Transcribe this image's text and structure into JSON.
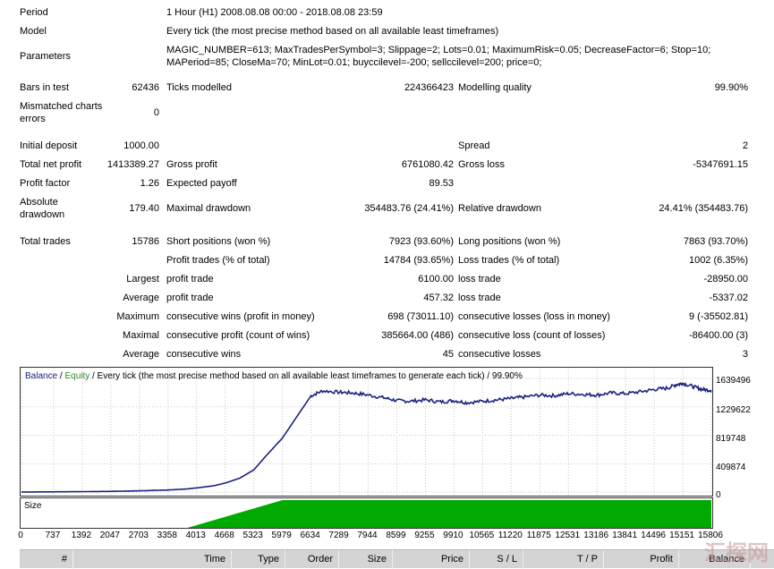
{
  "report": {
    "period_label": "Period",
    "period_value": "1 Hour (H1) 2008.08.08 00:00 - 2018.08.08 23:59",
    "model_label": "Model",
    "model_value": "Every tick (the most precise method based on all available least timeframes)",
    "parameters_label": "Parameters",
    "parameters_line1": "MAGIC_NUMBER=613; MaxTradesPerSymbol=3; Slippage=2; Lots=0.01; MaximumRisk=0.05; DecreaseFactor=6; Stop=10;",
    "parameters_line2": "MAPeriod=85; CloseMa=70; MinLot=0.01; buyccilevel=-200; sellccilevel=200; price=0;",
    "bars_label": "Bars in test",
    "bars_value": "62436",
    "ticks_label": "Ticks modelled",
    "ticks_value": "224366423",
    "quality_label": "Modelling quality",
    "quality_value": "99.90%",
    "mismatch_label_1": "Mismatched charts",
    "mismatch_label_2": "errors",
    "mismatch_value": "0",
    "deposit_label": "Initial deposit",
    "deposit_value": "1000.00",
    "spread_label": "Spread",
    "spread_value": "2",
    "net_profit_label": "Total net profit",
    "net_profit_value": "1413389.27",
    "gross_profit_label": "Gross profit",
    "gross_profit_value": "6761080.42",
    "gross_loss_label": "Gross loss",
    "gross_loss_value": "-5347691.15",
    "profit_factor_label": "Profit factor",
    "profit_factor_value": "1.26",
    "expected_payoff_label": "Expected payoff",
    "expected_payoff_value": "89.53",
    "abs_dd_label_1": "Absolute",
    "abs_dd_label_2": "drawdown",
    "abs_dd_value": "179.40",
    "max_dd_label": "Maximal drawdown",
    "max_dd_value": "354483.76 (24.41%)",
    "rel_dd_label": "Relative drawdown",
    "rel_dd_value": "24.41% (354483.76)",
    "total_trades_label": "Total trades",
    "total_trades_value": "15786",
    "short_label": "Short positions (won %)",
    "short_value": "7923 (93.60%)",
    "long_label": "Long positions (won %)",
    "long_value": "7863 (93.70%)",
    "profit_trades_label": "Profit trades (% of total)",
    "profit_trades_value": "14784 (93.65%)",
    "loss_trades_label": "Loss trades (% of total)",
    "loss_trades_value": "1002 (6.35%)",
    "largest_label": "Largest",
    "largest_profit_label": "profit trade",
    "largest_profit_value": "6100.00",
    "largest_loss_label": "loss trade",
    "largest_loss_value": "-28950.00",
    "average_label": "Average",
    "average_profit_label": "profit trade",
    "average_profit_value": "457.32",
    "average_loss_label": "loss trade",
    "average_loss_value": "-5337.02",
    "maximum_label": "Maximum",
    "max_cons_wins_label": "consecutive wins (profit in money)",
    "max_cons_wins_value": "698 (73011.10)",
    "max_cons_losses_label": "consecutive losses (loss in money)",
    "max_cons_losses_value": "9 (-35502.81)",
    "maximal_label": "Maximal",
    "maximal_cons_profit_label": "consecutive profit (count of wins)",
    "maximal_cons_profit_value": "385664.00 (486)",
    "maximal_cons_loss_label": "consecutive loss (count of losses)",
    "maximal_cons_loss_value": "-86400.00 (3)",
    "avg_label": "Average",
    "avg_cons_wins_label": "consecutive wins",
    "avg_cons_wins_value": "45",
    "avg_cons_losses_label": "consecutive losses",
    "avg_cons_losses_value": "3"
  },
  "chart_title": {
    "balance": "Balance",
    "sep": " / ",
    "equity": "Equity",
    "rest": " / Every tick (the most precise method based on all available least timeframes to generate each tick)  /  99.90%"
  },
  "size_label": "Size",
  "columns": [
    "#",
    "Time",
    "Type",
    "Order",
    "Size",
    "Price",
    "S / L",
    "T / P",
    "Profit",
    "Balance"
  ],
  "watermark": "汇探网",
  "colors": {
    "balance": "#1a237e",
    "equity": "#2e8b2e",
    "size_bars": "#00aa00",
    "grid": "#c8c8c8"
  },
  "chart_data": {
    "type": "line",
    "x_ticks": [
      "0",
      "737",
      "1392",
      "2047",
      "2703",
      "3358",
      "4013",
      "4668",
      "5323",
      "5979",
      "6634",
      "7289",
      "7944",
      "8599",
      "9255",
      "9910",
      "10565",
      "11220",
      "11875",
      "12531",
      "13186",
      "13841",
      "14496",
      "15151",
      "15806"
    ],
    "y_ticks": [
      "1639496",
      "1229622",
      "819748",
      "409874",
      "0"
    ],
    "ylim": [
      0,
      1639496
    ],
    "xlim": [
      0,
      15806
    ],
    "series": [
      {
        "name": "Balance",
        "x": [
          0,
          737,
          1392,
          2047,
          2703,
          3358,
          3800,
          4013,
          4400,
          4668,
          5000,
          5323,
          5600,
          5979,
          6300,
          6634,
          6900,
          7289,
          7600,
          7944,
          8300,
          8599,
          8900,
          9255,
          9600,
          9910,
          10200,
          10565,
          10900,
          11220,
          11500,
          11875,
          12200,
          12531,
          12900,
          13186,
          13500,
          13841,
          14200,
          14496,
          14800,
          15000,
          15151,
          15400,
          15600,
          15806
        ],
        "y": [
          1000,
          3000,
          6000,
          10000,
          18000,
          30000,
          45000,
          60000,
          90000,
          130000,
          200000,
          320000,
          520000,
          780000,
          1080000,
          1390000,
          1460000,
          1440000,
          1430000,
          1400000,
          1360000,
          1320000,
          1310000,
          1330000,
          1300000,
          1320000,
          1290000,
          1310000,
          1330000,
          1350000,
          1370000,
          1400000,
          1390000,
          1420000,
          1410000,
          1400000,
          1430000,
          1420000,
          1450000,
          1480000,
          1500000,
          1550000,
          1570000,
          1520000,
          1480000,
          1470000
        ]
      }
    ],
    "size_series": {
      "name": "Size",
      "start_x": 3800,
      "ramp_end_x": 5979,
      "end_x": 15806
    }
  }
}
